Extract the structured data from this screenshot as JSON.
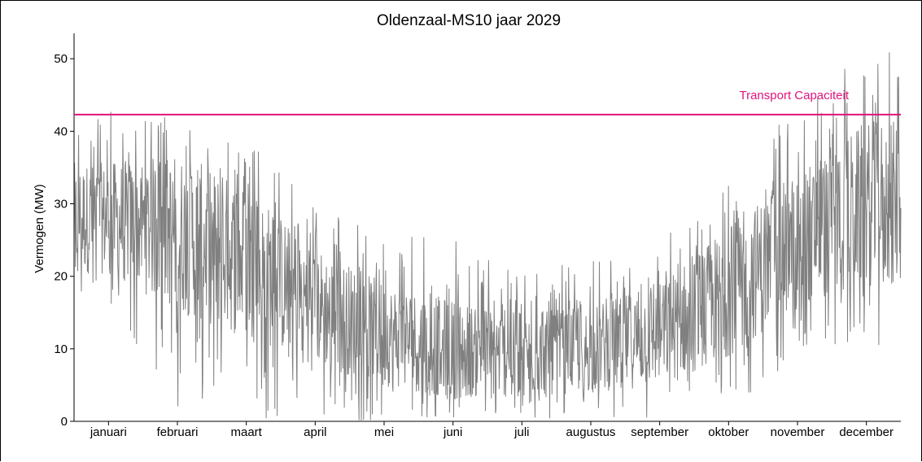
{
  "chart_data": {
    "type": "line",
    "title": "Oldenzaal-MS10 jaar 2029",
    "ylabel": "Vermogen (MW)",
    "xlabel": "",
    "ylim": [
      0,
      53.5
    ],
    "yticks": [
      0,
      10,
      20,
      30,
      40,
      50
    ],
    "months": [
      "januari",
      "februari",
      "maart",
      "april",
      "mei",
      "juni",
      "juli",
      "augustus",
      "september",
      "oktober",
      "november",
      "december"
    ],
    "series": [
      {
        "color": "#808080",
        "description_weekly_envelope": [
          {
            "month": "januari",
            "min": 16,
            "max": 44,
            "mean": 28
          },
          {
            "month": "februari",
            "min": 2,
            "max": 42,
            "mean": 26
          },
          {
            "month": "maart",
            "min": 0,
            "max": 39,
            "mean": 22
          },
          {
            "month": "april",
            "min": 0,
            "max": 30,
            "mean": 16
          },
          {
            "month": "mei",
            "min": 0,
            "max": 26,
            "mean": 12
          },
          {
            "month": "juni",
            "min": 0,
            "max": 25,
            "mean": 10
          },
          {
            "month": "juli",
            "min": 0,
            "max": 21,
            "mean": 9
          },
          {
            "month": "augustus",
            "min": 0,
            "max": 22,
            "mean": 10
          },
          {
            "month": "september",
            "min": 0,
            "max": 26,
            "mean": 12
          },
          {
            "month": "oktober",
            "min": 0,
            "max": 33,
            "mean": 18
          },
          {
            "month": "november",
            "min": 9,
            "max": 44,
            "mean": 25
          },
          {
            "month": "december",
            "min": 10,
            "max": 51.5,
            "mean": 30
          }
        ]
      }
    ],
    "reference_line": {
      "label": "Transport Capaciteit",
      "value": 42.3,
      "color": "#e0147c"
    }
  }
}
